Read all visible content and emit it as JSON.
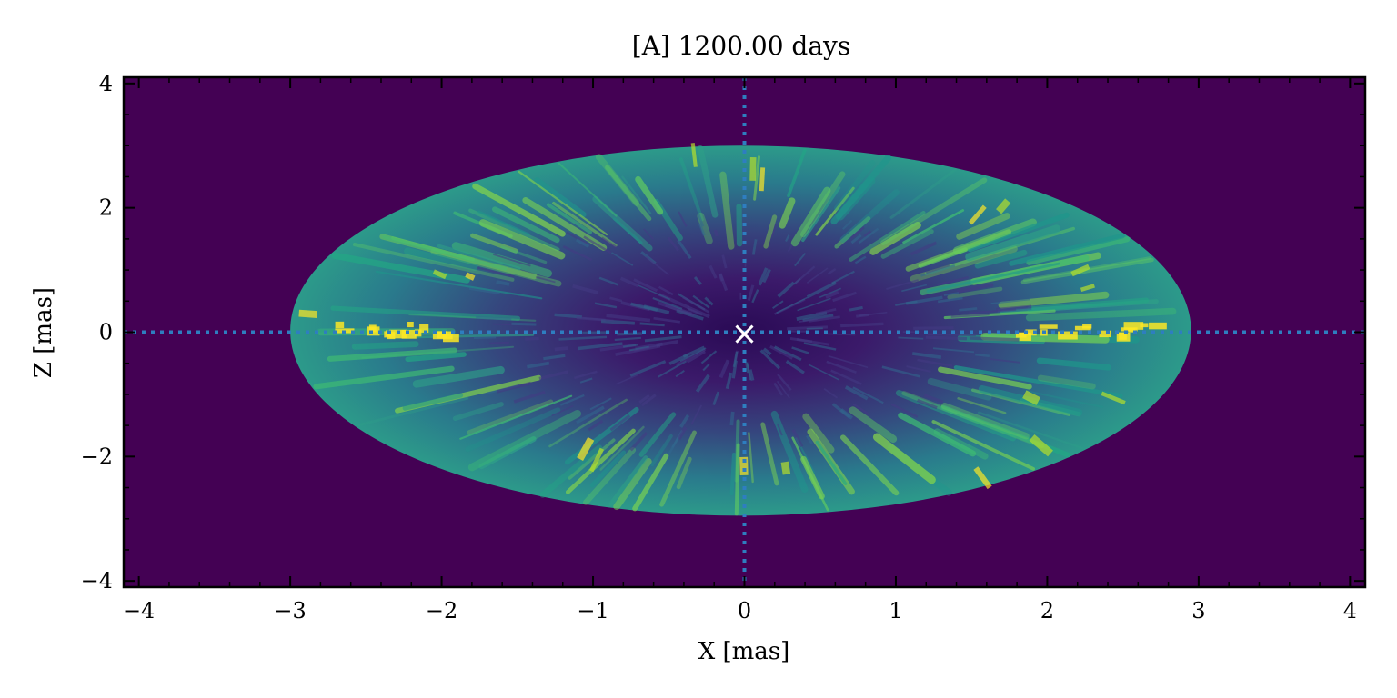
{
  "chart_data": {
    "type": "heatmap",
    "title": "[A] 1200.00 days",
    "xlabel": "X [mas]",
    "ylabel": "Z [mas]",
    "xlim": [
      -4.1,
      4.1
    ],
    "ylim": [
      -4.1,
      4.1
    ],
    "x_ticks": [
      -4,
      -3,
      -2,
      -1,
      0,
      1,
      2,
      3,
      4
    ],
    "x_tick_labels": [
      "−4",
      "−3",
      "−2",
      "−1",
      "0",
      "1",
      "2",
      "3",
      "4"
    ],
    "y_ticks": [
      -4,
      -2,
      0,
      2,
      4
    ],
    "y_tick_labels": [
      "−4",
      "−2",
      "0",
      "2",
      "4"
    ],
    "colormap": "viridis",
    "background_color": "#440154",
    "ejecta": {
      "shape": "ellipse",
      "center_x": 0.0,
      "center_z": 0.0,
      "semi_axis_x": 3.0,
      "semi_axis_z": 3.0,
      "x_extent": [
        -3.0,
        2.95
      ],
      "z_extent": [
        -2.95,
        3.0
      ],
      "edge_color": "#2c8f8a",
      "core_color": "#3b1a6a",
      "hotspot_color": "#fde725"
    },
    "crosshair": {
      "x": 0.0,
      "z": 0.0,
      "style": "dotted",
      "color": "#2e7ec0"
    },
    "marker": {
      "x": 0.0,
      "z": -0.03,
      "symbol": "x",
      "color": "#ffffff"
    }
  }
}
